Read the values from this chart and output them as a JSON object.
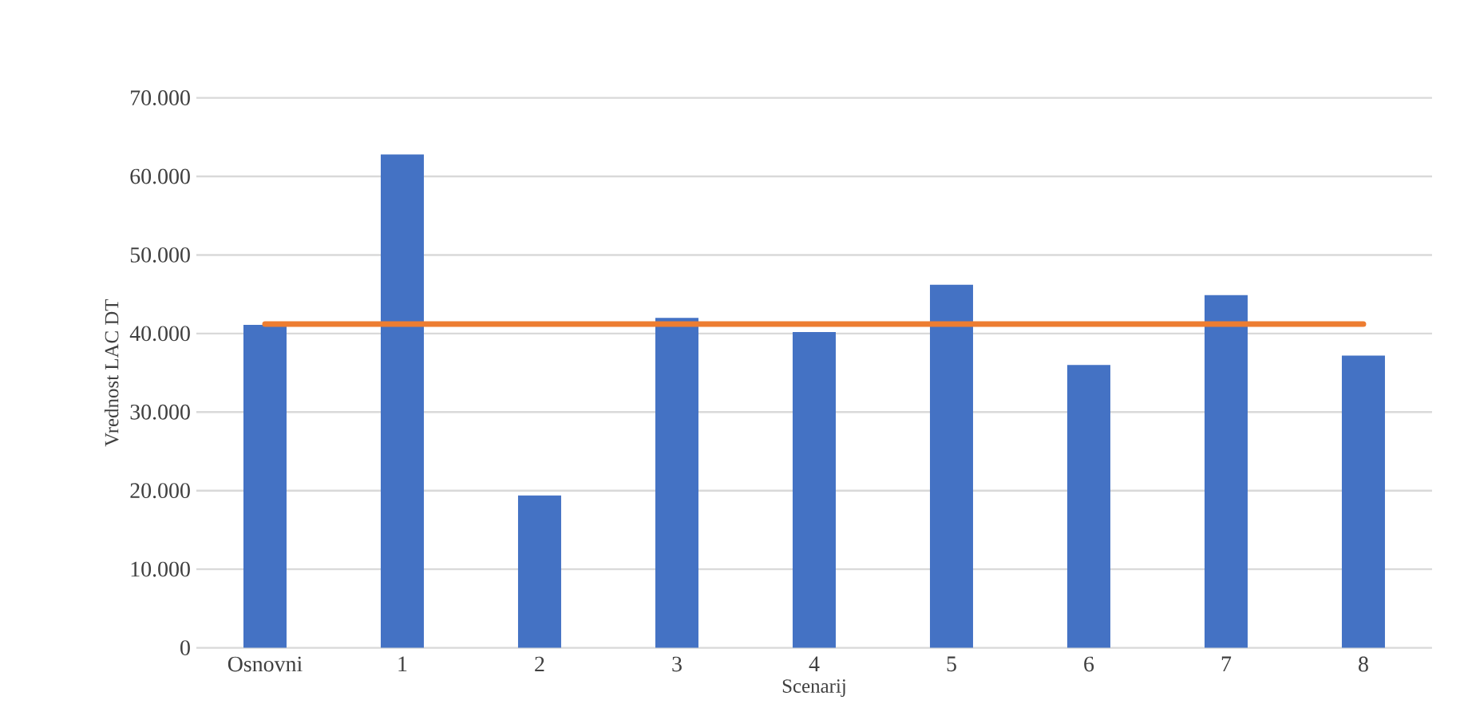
{
  "chart_data": {
    "type": "bar",
    "xlabel": "Scenarij",
    "ylabel": "Vrednost LAC DT",
    "categories": [
      "Osnovni",
      "1",
      "2",
      "3",
      "4",
      "5",
      "6",
      "7",
      "8"
    ],
    "series": [
      {
        "color": "#4472c4",
        "values": [
          41100,
          62800,
          19400,
          42000,
          40200,
          46200,
          36000,
          44900,
          37200
        ]
      },
      {
        "type": "line",
        "color": "#ed7d31",
        "values": [
          41200,
          41200,
          41200,
          41200,
          41200,
          41200,
          41200,
          41200,
          41200
        ]
      }
    ],
    "ylim": [
      0,
      70000
    ],
    "yticks": [
      0,
      {
        "value": 10000,
        "label": "10.000"
      },
      {
        "value": 20000,
        "label": "20.000"
      },
      {
        "value": 30000,
        "label": "30.000"
      },
      {
        "value": 40000,
        "label": "40.000"
      },
      {
        "value": 50000,
        "label": "50.000"
      },
      {
        "value": 60000,
        "label": "60.000"
      },
      {
        "value": 70000,
        "label": "70.000"
      }
    ],
    "grid": "y"
  }
}
